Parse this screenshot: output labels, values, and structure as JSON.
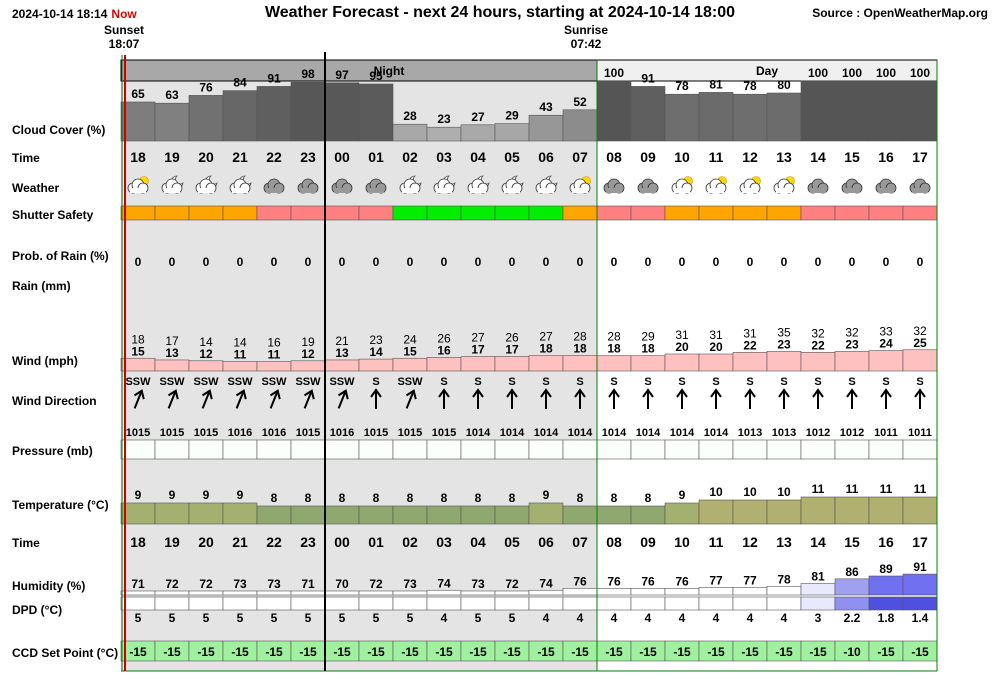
{
  "header": {
    "datetime": "2024-10-14 18:14",
    "now_label": "Now",
    "title": "Weather Forecast - next 24 hours, starting at 2024-10-14 18:00",
    "source": "Source : OpenWeatherMap.org"
  },
  "sun": {
    "sunset_label": "Sunset",
    "sunset_time": "18:07",
    "sunrise_label": "Sunrise",
    "sunrise_time": "07:42"
  },
  "bands": {
    "night": "Night",
    "day": "Day"
  },
  "row_labels": {
    "cloud": "Cloud Cover (%)",
    "time": "Time",
    "weather": "Weather",
    "shutter": "Shutter Safety",
    "rain_prob": "Prob. of Rain (%)",
    "rain": "Rain (mm)",
    "wind": "Wind (mph)",
    "wind_dir": "Wind Direction",
    "pressure": "Pressure (mb)",
    "temperature": "Temperature (°C)",
    "time2": "Time",
    "humidity": "Humidity (%)",
    "dpd": "DPD (°C)",
    "ccd": "CCD Set Point (°C)"
  },
  "colors": {
    "night_bg": "#e4e4e4",
    "band_bg": "#a8a8a8",
    "shutter_orange": "#ffa500",
    "shutter_red": "#ff8080",
    "shutter_green": "#00ee00",
    "wind_fill": "#ffc0c0",
    "temp_fill": "#8fa870",
    "ccd_fill": "#a0f0a0",
    "day_line": "#008000"
  },
  "chart_data": {
    "type": "table",
    "hours": [
      "18",
      "19",
      "20",
      "21",
      "22",
      "23",
      "00",
      "01",
      "02",
      "03",
      "04",
      "05",
      "06",
      "07",
      "08",
      "09",
      "10",
      "11",
      "12",
      "13",
      "14",
      "15",
      "16",
      "17"
    ],
    "cloud_cover": [
      65,
      63,
      76,
      84,
      91,
      98,
      97,
      95,
      28,
      23,
      27,
      29,
      43,
      52,
      100,
      91,
      78,
      81,
      78,
      80,
      100,
      100,
      100,
      100
    ],
    "weather_icons": [
      "partly-cloudy-sun",
      "partly-cloudy-night",
      "partly-cloudy-night",
      "partly-cloudy-night",
      "overcast",
      "overcast",
      "overcast",
      "overcast",
      "partly-cloudy-night",
      "partly-cloudy-night",
      "partly-cloudy-night",
      "partly-cloudy-night",
      "partly-cloudy-night",
      "partly-cloudy-sun",
      "overcast",
      "overcast",
      "partly-cloudy-sun",
      "partly-cloudy-sun",
      "partly-cloudy-sun",
      "partly-cloudy-sun",
      "overcast",
      "overcast",
      "overcast",
      "overcast"
    ],
    "shutter_safety": [
      "orange",
      "orange",
      "orange",
      "orange",
      "red",
      "red",
      "red",
      "red",
      "green",
      "green",
      "green",
      "green",
      "green",
      "orange",
      "red",
      "red",
      "orange",
      "orange",
      "orange",
      "orange",
      "red",
      "red",
      "red",
      "red"
    ],
    "rain_prob": [
      0,
      0,
      0,
      0,
      0,
      0,
      0,
      0,
      0,
      0,
      0,
      0,
      0,
      0,
      0,
      0,
      0,
      0,
      0,
      0,
      0,
      0,
      0,
      0
    ],
    "wind_gust": [
      18,
      17,
      14,
      14,
      16,
      19,
      21,
      23,
      24,
      26,
      27,
      26,
      27,
      28,
      28,
      29,
      31,
      31,
      31,
      35,
      32,
      32,
      33,
      32
    ],
    "wind_speed": [
      15,
      13,
      12,
      11,
      11,
      12,
      13,
      14,
      15,
      16,
      17,
      17,
      18,
      18,
      18,
      18,
      20,
      20,
      22,
      23,
      22,
      23,
      24,
      25
    ],
    "wind_direction": [
      "SSW",
      "SSW",
      "SSW",
      "SSW",
      "SSW",
      "SSW",
      "SSW",
      "S",
      "SSW",
      "S",
      "S",
      "S",
      "S",
      "S",
      "S",
      "S",
      "S",
      "S",
      "S",
      "S",
      "S",
      "S",
      "S",
      "S"
    ],
    "wind_bearing_deg": [
      202,
      202,
      202,
      202,
      202,
      202,
      202,
      180,
      202,
      180,
      180,
      180,
      180,
      180,
      180,
      180,
      180,
      180,
      180,
      180,
      180,
      180,
      180,
      180
    ],
    "pressure": [
      1015,
      1015,
      1015,
      1016,
      1016,
      1015,
      1016,
      1015,
      1015,
      1015,
      1014,
      1014,
      1014,
      1014,
      1014,
      1014,
      1014,
      1014,
      1013,
      1013,
      1012,
      1012,
      1011,
      1011
    ],
    "temperature": [
      9,
      9,
      9,
      9,
      8,
      8,
      8,
      8,
      8,
      8,
      8,
      8,
      9,
      8,
      8,
      8,
      9,
      10,
      10,
      10,
      11,
      11,
      11,
      11
    ],
    "humidity": [
      71,
      72,
      72,
      73,
      73,
      71,
      70,
      72,
      73,
      74,
      73,
      72,
      74,
      76,
      76,
      76,
      76,
      77,
      77,
      78,
      81,
      86,
      89,
      91
    ],
    "dpd": [
      "5",
      "5",
      "5",
      "5",
      "5",
      "5",
      "5",
      "5",
      "5",
      "4",
      "5",
      "5",
      "4",
      "4",
      "4",
      "4",
      "4",
      "4",
      "4",
      "4",
      "3",
      "2.2",
      "1.8",
      "1.4"
    ],
    "ccd_set_point": [
      -15,
      -15,
      -15,
      -15,
      -15,
      -15,
      -15,
      -15,
      -15,
      -15,
      -15,
      -15,
      -15,
      -15,
      -15,
      -15,
      -15,
      -15,
      -15,
      -15,
      -15,
      -10,
      -15,
      -15
    ]
  }
}
